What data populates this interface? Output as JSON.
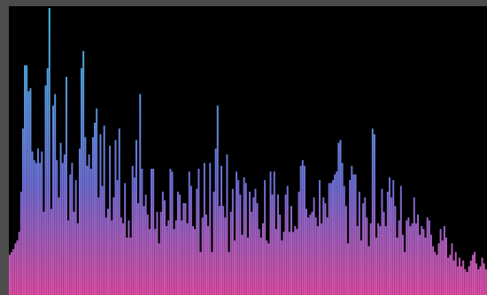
{
  "visualizer": {
    "colors": {
      "background": "#000000",
      "frame": "#4a4a4a",
      "bar_top": "#3fc2e6",
      "bar_mid": "#6f6fd6",
      "bar_bottom": "#e44fa8"
    },
    "levels": [
      0.14,
      0.15,
      0.16,
      0.18,
      0.19,
      0.22,
      0.36,
      0.58,
      0.8,
      0.8,
      0.71,
      0.72,
      0.5,
      0.47,
      0.46,
      0.51,
      0.46,
      0.5,
      0.29,
      0.73,
      0.79,
      1.0,
      0.3,
      0.66,
      0.7,
      0.47,
      0.34,
      0.53,
      0.46,
      0.49,
      0.76,
      0.26,
      0.42,
      0.46,
      0.29,
      0.4,
      0.25,
      0.51,
      0.79,
      0.85,
      0.55,
      0.45,
      0.49,
      0.44,
      0.55,
      0.6,
      0.65,
      0.34,
      0.56,
      0.38,
      0.59,
      0.27,
      0.3,
      0.52,
      0.26,
      0.34,
      0.54,
      0.4,
      0.58,
      0.27,
      0.25,
      0.39,
      0.2,
      0.26,
      0.2,
      0.45,
      0.41,
      0.54,
      0.32,
      0.7,
      0.44,
      0.31,
      0.35,
      0.28,
      0.23,
      0.44,
      0.44,
      0.23,
      0.29,
      0.18,
      0.29,
      0.36,
      0.33,
      0.24,
      0.26,
      0.44,
      0.43,
      0.23,
      0.26,
      0.36,
      0.35,
      0.26,
      0.32,
      0.32,
      0.25,
      0.43,
      0.38,
      0.24,
      0.23,
      0.37,
      0.44,
      0.15,
      0.27,
      0.46,
      0.28,
      0.24,
      0.46,
      0.15,
      0.36,
      0.51,
      0.66,
      0.31,
      0.45,
      0.31,
      0.27,
      0.49,
      0.15,
      0.29,
      0.37,
      0.19,
      0.43,
      0.4,
      0.35,
      0.21,
      0.41,
      0.39,
      0.2,
      0.36,
      0.29,
      0.34,
      0.37,
      0.32,
      0.23,
      0.2,
      0.25,
      0.4,
      0.19,
      0.18,
      0.43,
      0.35,
      0.43,
      0.23,
      0.35,
      0.28,
      0.19,
      0.22,
      0.35,
      0.38,
      0.22,
      0.31,
      0.22,
      0.24,
      0.23,
      0.36,
      0.45,
      0.47,
      0.45,
      0.3,
      0.27,
      0.28,
      0.29,
      0.34,
      0.27,
      0.24,
      0.4,
      0.25,
      0.34,
      0.32,
      0.27,
      0.39,
      0.39,
      0.4,
      0.42,
      0.43,
      0.53,
      0.54,
      0.46,
      0.38,
      0.31,
      0.18,
      0.4,
      0.45,
      0.42,
      0.42,
      0.24,
      0.36,
      0.19,
      0.32,
      0.34,
      0.27,
      0.17,
      0.25,
      0.58,
      0.56,
      0.2,
      0.25,
      0.24,
      0.37,
      0.29,
      0.24,
      0.36,
      0.41,
      0.34,
      0.4,
      0.31,
      0.2,
      0.26,
      0.38,
      0.21,
      0.15,
      0.26,
      0.27,
      0.24,
      0.25,
      0.34,
      0.25,
      0.28,
      0.21,
      0.24,
      0.23,
      0.2,
      0.27,
      0.26,
      0.21,
      0.17,
      0.15,
      0.14,
      0.18,
      0.23,
      0.19,
      0.24,
      0.2,
      0.13,
      0.14,
      0.18,
      0.12,
      0.15,
      0.1,
      0.13,
      0.1,
      0.12,
      0.09,
      0.08,
      0.1,
      0.12,
      0.14,
      0.15,
      0.11,
      0.09,
      0.1,
      0.13,
      0.11,
      0.09
    ]
  }
}
